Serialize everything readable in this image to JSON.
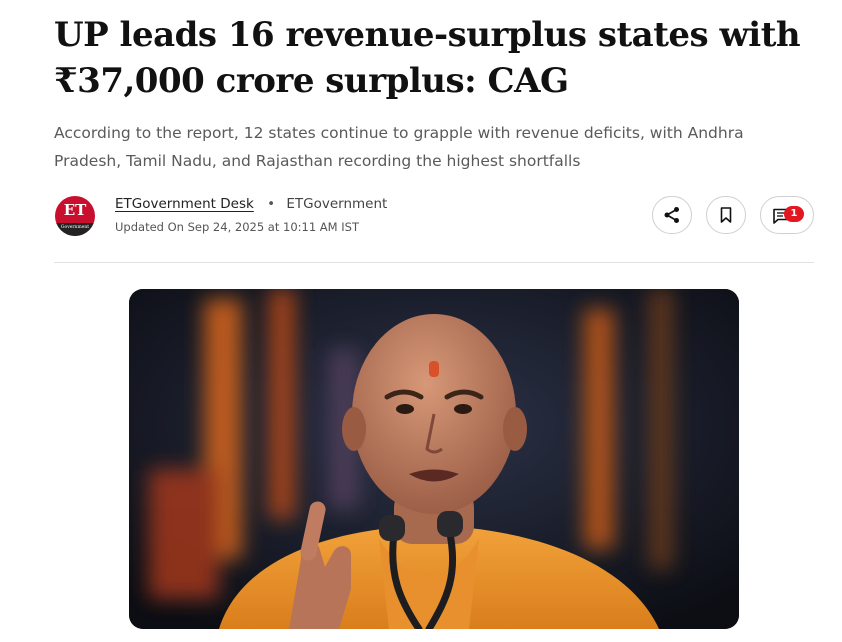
{
  "article": {
    "headline": "UP leads 16 revenue-surplus states with ₹37,000 crore surplus: CAG",
    "summary": "According to the report, 12 states continue to grapple with revenue deficits, with Andhra Pradesh, Tamil Nadu, and Rajasthan recording the highest shortfalls",
    "byline": {
      "logo_text": "ET",
      "logo_subtext": "Government",
      "author": "ETGovernment Desk",
      "separator": "•",
      "source": "ETGovernment",
      "updated": "Updated On Sep 24, 2025 at 10:11 AM IST"
    },
    "actions": {
      "share_icon": "share-icon",
      "bookmark_icon": "bookmark-icon",
      "comment_icon": "comment-icon",
      "comment_count": "1"
    },
    "hero_image": {
      "description_icon": "photo-of-speaker-at-microphones"
    },
    "colors": {
      "brand_red": "#c8102e",
      "badge_red": "#e3171f",
      "summary_gray": "#5a5a5a"
    }
  }
}
